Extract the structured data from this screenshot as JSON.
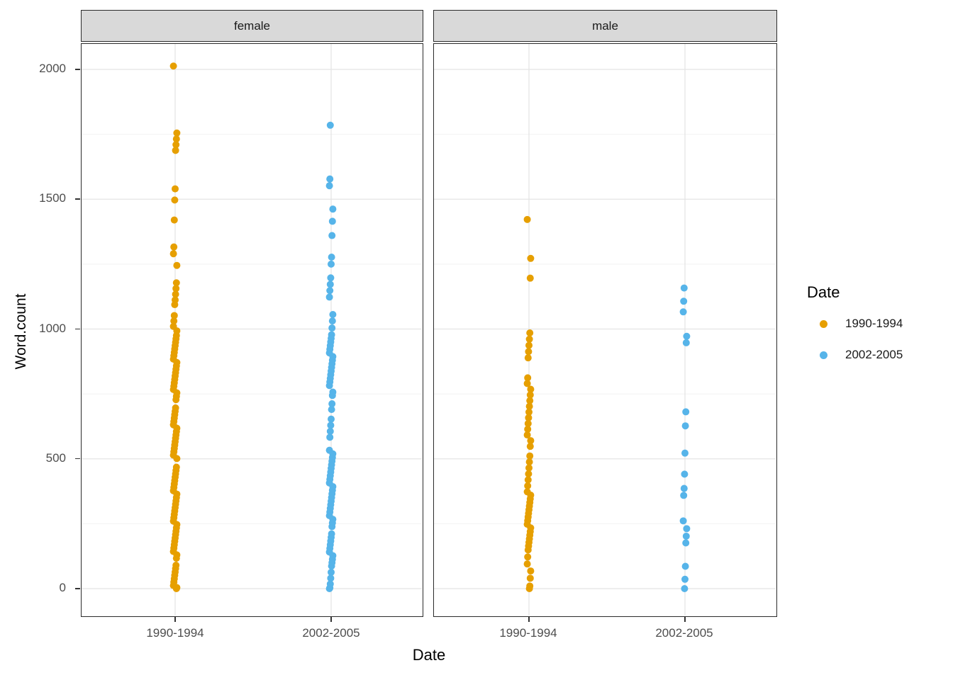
{
  "axes": {
    "x": {
      "title": "Date",
      "categories": [
        "1990-1994",
        "2002-2005"
      ]
    },
    "y": {
      "title": "Word.count",
      "tick_labels": [
        "2000",
        "1500",
        "1000",
        "500",
        "0"
      ],
      "tick_values": [
        2000,
        1500,
        1000,
        500,
        0
      ],
      "minor_values": [
        1750,
        1250,
        750,
        250
      ]
    }
  },
  "facets": [
    {
      "label": "female"
    },
    {
      "label": "male"
    }
  ],
  "legend": {
    "title": "Date",
    "entries": [
      {
        "label": "1990-1994",
        "color": "#E69F00"
      },
      {
        "label": "2002-2005",
        "color": "#56B4E9"
      }
    ]
  },
  "style": {
    "orange": "#E69F00",
    "blue": "#56B4E9",
    "strip_bg": "#D9D9D9",
    "panel_border": "#2B2B2B",
    "grid_major": "#E4E4E4",
    "grid_minor": "#F2F2F2",
    "tick_label_color": "#4D4D4D"
  },
  "chart_data": {
    "type": "scatter",
    "title": "",
    "xlabel": "Date",
    "ylabel": "Word.count",
    "ylim": [
      0,
      2100
    ],
    "yticks": [
      0,
      500,
      1000,
      1500,
      2000
    ],
    "grid": true,
    "legend_position": "right",
    "facets": [
      {
        "name": "female",
        "series": [
          {
            "name": "1990-1994",
            "color": "#E69F00",
            "values": [
              2013,
              1755,
              1732,
              1710,
              1688,
              1540,
              1497,
              1420,
              1316,
              1290,
              1245,
              1178,
              1156,
              1134,
              1112,
              1094,
              1052,
              1031,
              1010,
              993,
              975,
              962,
              949,
              936,
              923,
              910,
              897,
              884,
              871,
              858,
              845,
              832,
              819,
              806,
              793,
              780,
              767,
              754,
              741,
              728,
              696,
              683,
              670,
              657,
              644,
              631,
              618,
              605,
              592,
              579,
              566,
              553,
              540,
              527,
              514,
              501,
              468,
              455,
              442,
              429,
              416,
              403,
              390,
              377,
              364,
              351,
              338,
              325,
              312,
              299,
              286,
              273,
              260,
              247,
              234,
              221,
              208,
              195,
              182,
              169,
              156,
              143,
              130,
              117,
              90,
              77,
              64,
              51,
              38,
              25,
              12,
              4,
              0
            ]
          },
          {
            "name": "2002-2005",
            "color": "#56B4E9",
            "values": [
              1785,
              1578,
              1552,
              1462,
              1415,
              1360,
              1277,
              1250,
              1197,
              1172,
              1148,
              1123,
              1056,
              1031,
              1004,
              978,
              964,
              950,
              936,
              922,
              908,
              894,
              880,
              866,
              852,
              838,
              824,
              810,
              796,
              782,
              757,
              744,
              712,
              690,
              653,
              629,
              606,
              583,
              533,
              519,
              505,
              491,
              477,
              463,
              449,
              435,
              421,
              407,
              393,
              379,
              365,
              351,
              337,
              323,
              309,
              295,
              281,
              267,
              253,
              239,
              211,
              197,
              183,
              169,
              155,
              141,
              127,
              113,
              100,
              87,
              63,
              40,
              18,
              3,
              0
            ]
          }
        ]
      },
      {
        "name": "male",
        "series": [
          {
            "name": "1990-1994",
            "color": "#E69F00",
            "values": [
              1422,
              1272,
              1196,
              985,
              961,
              937,
              913,
              889,
              812,
              790,
              768,
              746,
              724,
              702,
              680,
              658,
              636,
              614,
              592,
              570,
              548,
              511,
              488,
              465,
              442,
              419,
              396,
              373,
              360,
              346,
              332,
              318,
              304,
              290,
              276,
              262,
              248,
              234,
              220,
              206,
              192,
              178,
              164,
              149,
              122,
              95,
              68,
              40,
              10,
              0
            ]
          },
          {
            "name": "2002-2005",
            "color": "#56B4E9",
            "values": [
              1158,
              1107,
              1066,
              972,
              947,
              681,
              627,
              522,
              441,
              386,
              359,
              261,
              231,
              202,
              176,
              86,
              36,
              0
            ]
          }
        ]
      }
    ]
  }
}
